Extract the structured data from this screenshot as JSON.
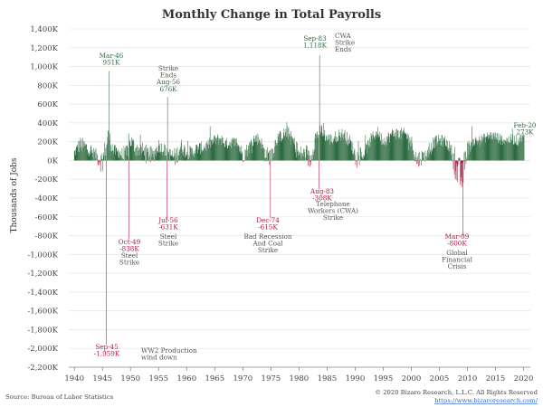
{
  "colors": {
    "positive": "#2e6b41",
    "negative": "#b5133e",
    "grid": "#e6e6e6",
    "axis": "#888888",
    "note": "#555555",
    "link": "#3366cc"
  },
  "chart_data": {
    "type": "bar",
    "title": "Monthly Change in Total Payrolls",
    "ylabel": "Thousands of Jobs",
    "xlabel": "",
    "ylim": [
      -2200,
      1400
    ],
    "xlim": [
      1939.0,
      2021.2
    ],
    "y_ticks": [
      1400,
      1200,
      1000,
      800,
      600,
      400,
      200,
      0,
      -200,
      -400,
      -600,
      -800,
      -1000,
      -1200,
      -1400,
      -1600,
      -1800,
      -2000,
      -2200
    ],
    "y_tick_labels": [
      "1,400K",
      "1,200K",
      "1,000K",
      "800K",
      "600K",
      "400K",
      "200K",
      "0K",
      "-200K",
      "-400K",
      "-600K",
      "-800K",
      "-1,000K",
      "-1,200K",
      "-1,400K",
      "-1,600K",
      "-1,800K",
      "-2,000K",
      "-2,200K"
    ],
    "x_ticks": [
      1940,
      1945,
      1950,
      1955,
      1960,
      1965,
      1970,
      1975,
      1980,
      1985,
      1990,
      1995,
      2000,
      2005,
      2010,
      2015,
      2020
    ],
    "x_tick_labels": [
      "1940",
      "1945",
      "1950",
      "1955",
      "1960",
      "1965",
      "1970",
      "1975",
      "1980",
      "1985",
      "1990",
      "1995",
      "2000",
      "2005",
      "2010",
      "2015",
      "2020"
    ],
    "series_description": "Monthly change in total nonfarm payrolls, thousands of jobs, Jan 1940 - Feb 2020 (positive bars green, negative bars red)",
    "key_points": [
      {
        "date": 1946.17,
        "value": 951
      },
      {
        "date": 1956.58,
        "value": 676
      },
      {
        "date": 1983.67,
        "value": 1118
      },
      {
        "date": 2020.08,
        "value": 273
      },
      {
        "date": 1945.67,
        "value": -1959
      },
      {
        "date": 1949.75,
        "value": -838
      },
      {
        "date": 1956.5,
        "value": -631
      },
      {
        "date": 1974.92,
        "value": -615
      },
      {
        "date": 1983.58,
        "value": -308
      },
      {
        "date": 2009.17,
        "value": -800
      }
    ],
    "background_profile": [
      [
        1940,
        20,
        140
      ],
      [
        1941,
        80,
        260
      ],
      [
        1942,
        60,
        230
      ],
      [
        1943,
        30,
        160
      ],
      [
        1944,
        -40,
        130
      ],
      [
        1945,
        -160,
        130
      ],
      [
        1946,
        150,
        380
      ],
      [
        1947,
        30,
        170
      ],
      [
        1948,
        20,
        160
      ],
      [
        1949,
        -100,
        130
      ],
      [
        1950,
        120,
        300
      ],
      [
        1951,
        40,
        200
      ],
      [
        1952,
        30,
        200
      ],
      [
        1953,
        -30,
        170
      ],
      [
        1954,
        -50,
        140
      ],
      [
        1955,
        90,
        240
      ],
      [
        1956,
        40,
        180
      ],
      [
        1957,
        -20,
        140
      ],
      [
        1958,
        -80,
        140
      ],
      [
        1959,
        80,
        240
      ],
      [
        1960,
        0,
        160
      ],
      [
        1961,
        20,
        160
      ],
      [
        1962,
        60,
        200
      ],
      [
        1963,
        70,
        200
      ],
      [
        1964,
        110,
        240
      ],
      [
        1965,
        150,
        280
      ],
      [
        1966,
        170,
        300
      ],
      [
        1967,
        110,
        240
      ],
      [
        1968,
        130,
        260
      ],
      [
        1969,
        120,
        260
      ],
      [
        1970,
        -30,
        150
      ],
      [
        1971,
        60,
        200
      ],
      [
        1972,
        160,
        300
      ],
      [
        1973,
        160,
        300
      ],
      [
        1974,
        -20,
        150
      ],
      [
        1975,
        -60,
        150
      ],
      [
        1976,
        150,
        290
      ],
      [
        1977,
        200,
        340
      ],
      [
        1978,
        230,
        370
      ],
      [
        1979,
        140,
        280
      ],
      [
        1980,
        -50,
        170
      ],
      [
        1981,
        0,
        150
      ],
      [
        1982,
        -120,
        110
      ],
      [
        1983,
        180,
        350
      ],
      [
        1984,
        240,
        400
      ],
      [
        1985,
        170,
        300
      ],
      [
        1986,
        150,
        290
      ],
      [
        1987,
        200,
        340
      ],
      [
        1988,
        210,
        350
      ],
      [
        1989,
        130,
        280
      ],
      [
        1990,
        0,
        150
      ],
      [
        1991,
        -70,
        110
      ],
      [
        1992,
        50,
        190
      ],
      [
        1993,
        180,
        310
      ],
      [
        1994,
        240,
        370
      ],
      [
        1995,
        140,
        270
      ],
      [
        1996,
        180,
        320
      ],
      [
        1997,
        230,
        360
      ],
      [
        1998,
        210,
        350
      ],
      [
        1999,
        210,
        350
      ],
      [
        2000,
        110,
        280
      ],
      [
        2001,
        -120,
        120
      ],
      [
        2002,
        -30,
        120
      ],
      [
        2003,
        0,
        130
      ],
      [
        2004,
        130,
        260
      ],
      [
        2005,
        150,
        280
      ],
      [
        2006,
        140,
        270
      ],
      [
        2007,
        70,
        190
      ],
      [
        2008,
        -260,
        60
      ],
      [
        2009,
        -400,
        30
      ],
      [
        2010,
        40,
        210
      ],
      [
        2011,
        140,
        260
      ],
      [
        2012,
        150,
        270
      ],
      [
        2013,
        180,
        290
      ],
      [
        2014,
        220,
        320
      ],
      [
        2015,
        200,
        310
      ],
      [
        2016,
        170,
        280
      ],
      [
        2017,
        160,
        270
      ],
      [
        2018,
        170,
        290
      ],
      [
        2019,
        150,
        270
      ],
      [
        2020,
        220,
        310
      ]
    ],
    "annotations": [
      {
        "id": "mar46",
        "lines": [
          "Mar-46",
          "951K"
        ],
        "color": "positive"
      },
      {
        "id": "aug56",
        "lines": [
          "Strike",
          "Ends",
          "Aug-56",
          "676K"
        ],
        "color": "mixed"
      },
      {
        "id": "sep83",
        "lines": [
          "Sep-83",
          "1,118K"
        ],
        "color": "positive"
      },
      {
        "id": "cwa_ends",
        "lines": [
          "CWA",
          "Strike",
          "Ends"
        ],
        "color": "note"
      },
      {
        "id": "feb20",
        "lines": [
          "Feb-20",
          "273K"
        ],
        "color": "positive"
      },
      {
        "id": "oct49",
        "lines": [
          "Oct-49",
          "-838K"
        ],
        "color": "negative"
      },
      {
        "id": "steel1",
        "lines": [
          "Steel",
          "Strike"
        ],
        "color": "note"
      },
      {
        "id": "jul56",
        "lines": [
          "Jul-56",
          "-631K"
        ],
        "color": "negative"
      },
      {
        "id": "steel2",
        "lines": [
          "Steel",
          "Strike"
        ],
        "color": "note"
      },
      {
        "id": "dec74",
        "lines": [
          "Dec-74",
          "-615K"
        ],
        "color": "negative"
      },
      {
        "id": "badrec",
        "lines": [
          "Bad Recession",
          "And Coal",
          "Strike"
        ],
        "color": "note"
      },
      {
        "id": "aug83",
        "lines": [
          "Aug-83",
          "-308K"
        ],
        "color": "negative"
      },
      {
        "id": "telephone",
        "lines": [
          "Telephone",
          "Workers (CWA)",
          "Strike"
        ],
        "color": "note"
      },
      {
        "id": "mar09",
        "lines": [
          "Mar-09",
          "-800K"
        ],
        "color": "negative"
      },
      {
        "id": "gfc",
        "lines": [
          "Global",
          "Financial",
          "Crisis"
        ],
        "color": "note"
      },
      {
        "id": "sep45",
        "lines": [
          "Sep-45",
          "-1,959K"
        ],
        "color": "negative"
      },
      {
        "id": "ww2",
        "lines": [
          "WW2 Production",
          "wind down"
        ],
        "color": "note"
      }
    ]
  },
  "footer": {
    "source": "Source: Bureau of Labor Statistics",
    "copyright": "© 2020 Bizaro Research, L.L.C. All Rights Reserved",
    "url": "https://www.bizaroresearch.com/"
  }
}
